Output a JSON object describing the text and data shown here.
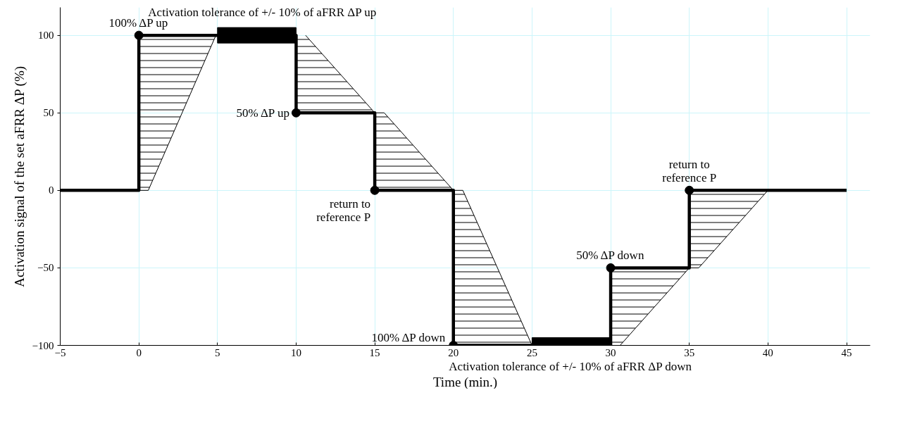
{
  "chart_data": {
    "type": "line",
    "xlabel": "Time (min.)",
    "ylabel": "Activation signal of the set aFRR ΔP (%)",
    "xlim": [
      -5,
      46.5
    ],
    "ylim": [
      -100,
      118
    ],
    "xticks": [
      -5,
      0,
      5,
      10,
      15,
      20,
      25,
      30,
      35,
      40,
      45
    ],
    "yticks": [
      -100,
      -50,
      0,
      50,
      100
    ],
    "grid": true,
    "series": [
      {
        "type": "line",
        "color": "#000000",
        "x": [
          0,
          0.6,
          4.9
        ],
        "values": [
          0,
          0,
          100
        ],
        "lower": [
          0,
          0,
          100
        ],
        "upper": [
          100,
          100,
          100
        ]
      },
      {
        "type": "line",
        "color": "#000000",
        "x": [
          10,
          10.6,
          15,
          15,
          15.6,
          20,
          20,
          20.6,
          25
        ],
        "values": [
          null,
          100,
          50,
          50,
          50,
          0,
          0,
          0,
          -100
        ],
        "lower": [
          50,
          50,
          50,
          0,
          0,
          0,
          -100,
          -100,
          -100
        ],
        "upper": [
          100,
          100,
          50,
          50,
          50,
          0,
          0,
          0,
          -100
        ]
      },
      {
        "type": "line",
        "color": "#000000",
        "x": [
          30,
          30.6,
          35,
          35,
          35.6,
          40
        ],
        "values": [
          -100,
          -100,
          -50,
          -50,
          -50,
          0
        ],
        "lower": [
          -100,
          -100,
          -50,
          -50,
          -50,
          0
        ],
        "upper": [
          -50,
          -50,
          -50,
          0,
          0,
          0
        ]
      },
      {
        "type": "bar",
        "color": "#000000",
        "x": [
          7.5,
          27.5
        ],
        "base": [
          95,
          -105
        ],
        "values": [
          10,
          10
        ]
      },
      {
        "color": "#000000",
        "x": [
          -5,
          0,
          0,
          10,
          10,
          15,
          15,
          20,
          20,
          30,
          30,
          35,
          35,
          45
        ],
        "values": [
          0,
          0,
          100,
          100,
          50,
          50,
          0,
          0,
          -100,
          -100,
          -50,
          -50,
          0,
          0
        ]
      },
      {
        "type": "scatter",
        "color": "#000000",
        "marker": "circle",
        "x": [
          0,
          10,
          15,
          20,
          30,
          35
        ],
        "values": [
          100,
          50,
          0,
          -100,
          -50,
          0
        ]
      }
    ],
    "annotations": [
      {
        "text": "100% ΔP up",
        "x": 0,
        "y": 100
      },
      {
        "text": "Activation tolerance of +/- 10% of aFRR ΔP up",
        "x": 7.5,
        "y": 105
      },
      {
        "text": "50% ΔP up",
        "x": 10,
        "y": 50
      },
      {
        "text": "return to\nreference P",
        "x": 15,
        "y": 0
      },
      {
        "text": "100% ΔP down",
        "x": 20,
        "y": -100
      },
      {
        "text": "Activation tolerance of +/- 10% of aFRR ΔP down",
        "x": 27.5,
        "y": -105
      },
      {
        "text": "50% ΔP down",
        "x": 30,
        "y": -50
      },
      {
        "text": "return to\nreference P",
        "x": 35,
        "y": 0
      }
    ]
  }
}
